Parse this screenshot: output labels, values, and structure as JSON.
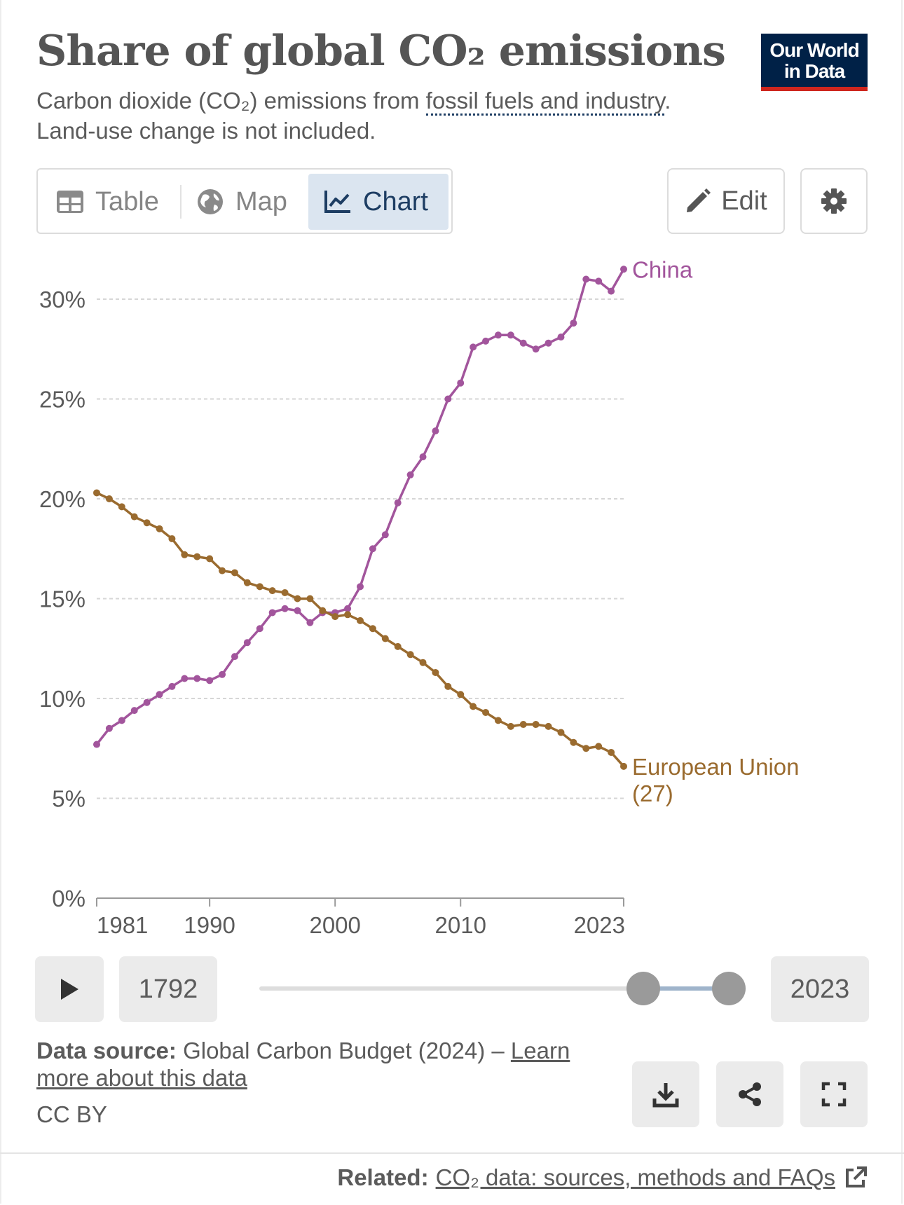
{
  "header": {
    "title": "Share of global CO₂ emissions",
    "subtitle_pre": "Carbon dioxide (CO₂) emissions from ",
    "subtitle_link": "fossil fuels and industry",
    "subtitle_post": ". Land-use change is not included.",
    "logo_line1": "Our World",
    "logo_line2": "in Data"
  },
  "tabs": {
    "table": "Table",
    "map": "Map",
    "chart": "Chart",
    "active": "chart"
  },
  "toolbar": {
    "edit_label": "Edit"
  },
  "timeline": {
    "start_year": "1792",
    "end_year": "2023"
  },
  "footer": {
    "source_label": "Data source:",
    "source_text": "Global Carbon Budget (2024) – ",
    "source_link": "Learn more about this data",
    "license": "CC BY",
    "related_label": "Related:",
    "related_link": "CO₂ data: sources, methods and FAQs"
  },
  "colors": {
    "china": "#a2559c",
    "eu": "#9a6b2f",
    "accent": "#1d3d63",
    "logo_bg": "#002147",
    "logo_bar": "#ce261e"
  },
  "chart_data": {
    "type": "line",
    "title": "Share of global CO₂ emissions",
    "xlabel": "",
    "ylabel": "",
    "ylim": [
      0,
      32
    ],
    "y_ticks": [
      0,
      5,
      10,
      15,
      20,
      25,
      30
    ],
    "y_tick_labels": [
      "0%",
      "5%",
      "10%",
      "15%",
      "20%",
      "25%",
      "30%"
    ],
    "x_ticks": [
      1981,
      1990,
      2000,
      2010,
      2023
    ],
    "x_tick_labels": [
      "1981",
      "1990",
      "2000",
      "2010",
      "2023"
    ],
    "x": [
      1981,
      1982,
      1983,
      1984,
      1985,
      1986,
      1987,
      1988,
      1989,
      1990,
      1991,
      1992,
      1993,
      1994,
      1995,
      1996,
      1997,
      1998,
      1999,
      2000,
      2001,
      2002,
      2003,
      2004,
      2005,
      2006,
      2007,
      2008,
      2009,
      2010,
      2011,
      2012,
      2013,
      2014,
      2015,
      2016,
      2017,
      2018,
      2019,
      2020,
      2021,
      2022,
      2023
    ],
    "series": [
      {
        "name": "China",
        "label_lines": [
          "China"
        ],
        "color": "#a2559c",
        "values": [
          7.7,
          8.5,
          8.9,
          9.4,
          9.8,
          10.2,
          10.6,
          11.0,
          11.0,
          10.9,
          11.2,
          12.1,
          12.8,
          13.5,
          14.3,
          14.5,
          14.4,
          13.8,
          14.3,
          14.3,
          14.5,
          15.6,
          17.5,
          18.2,
          19.8,
          21.2,
          22.1,
          23.4,
          25.0,
          25.8,
          27.6,
          27.9,
          28.2,
          28.2,
          27.8,
          27.5,
          27.8,
          28.1,
          28.8,
          31.0,
          30.9,
          30.4,
          31.5
        ]
      },
      {
        "name": "European Union (27)",
        "label_lines": [
          "European Union",
          "(27)"
        ],
        "color": "#9a6b2f",
        "values": [
          20.3,
          20.0,
          19.6,
          19.1,
          18.8,
          18.5,
          18.0,
          17.2,
          17.1,
          17.0,
          16.4,
          16.3,
          15.8,
          15.6,
          15.4,
          15.3,
          15.0,
          15.0,
          14.4,
          14.1,
          14.2,
          13.9,
          13.5,
          13.0,
          12.6,
          12.2,
          11.8,
          11.3,
          10.6,
          10.2,
          9.6,
          9.3,
          8.9,
          8.6,
          8.7,
          8.7,
          8.6,
          8.3,
          7.8,
          7.5,
          7.6,
          7.3,
          6.6
        ]
      }
    ],
    "legend": "line-end labels"
  }
}
